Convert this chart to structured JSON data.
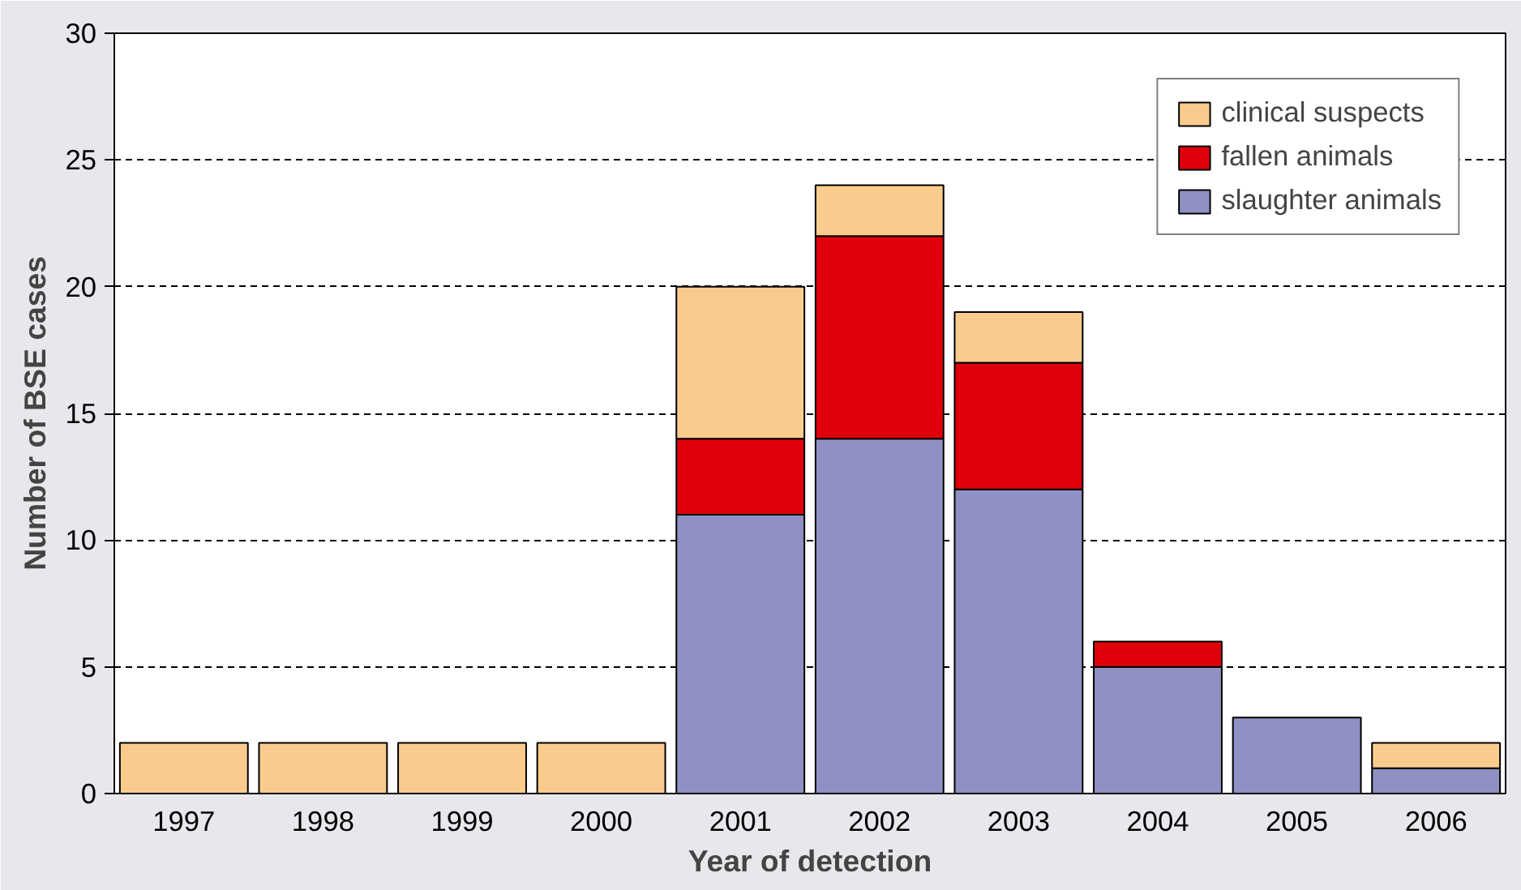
{
  "chart_data": {
    "type": "bar",
    "stacked": true,
    "xlabel": "Year of detection",
    "ylabel": "Number of BSE cases",
    "categories": [
      "1997",
      "1998",
      "1999",
      "2000",
      "2001",
      "2002",
      "2003",
      "2004",
      "2005",
      "2006"
    ],
    "series": [
      {
        "name": "slaughter animals",
        "color": "#8f91c4",
        "values": [
          0,
          0,
          0,
          0,
          11,
          14,
          12,
          5,
          3,
          1
        ]
      },
      {
        "name": "fallen animals",
        "color": "#e0000b",
        "values": [
          0,
          0,
          0,
          0,
          3,
          8,
          5,
          1,
          0,
          0
        ]
      },
      {
        "name": "clinical suspects",
        "color": "#f9cc8e",
        "values": [
          2,
          2,
          2,
          2,
          6,
          2,
          2,
          0,
          0,
          1
        ]
      }
    ],
    "ylim": [
      0,
      30
    ],
    "yticks": [
      0,
      5,
      10,
      15,
      20,
      25,
      30
    ],
    "grid": "y",
    "legend": "top right"
  }
}
